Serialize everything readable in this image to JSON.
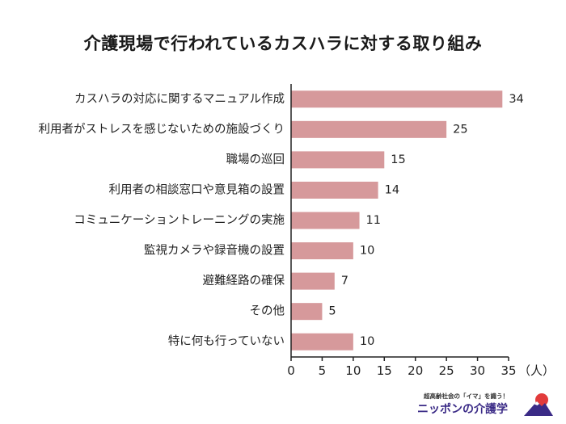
{
  "title": "介護現場で行われているカスハラに対する取り組み",
  "colors": {
    "bar": "#d6999b",
    "axis": "#222222",
    "brand": "#3a2a86",
    "brand_accent": "#e23b3b"
  },
  "chart_data": {
    "type": "bar",
    "orientation": "horizontal",
    "title": "介護現場で行われているカスハラに対する取り組み",
    "categories": [
      "カスハラの対応に関するマニュアル作成",
      "利用者がストレスを感じないための施設づくり",
      "職場の巡回",
      "利用者の相談窓口や意見箱の設置",
      "コミュニケーショントレーニングの実施",
      "監視カメラや録音機の設置",
      "避難経路の確保",
      "その他",
      "特に何も行っていない"
    ],
    "values": [
      34,
      25,
      15,
      14,
      11,
      10,
      7,
      5,
      10
    ],
    "xlim": [
      0,
      35
    ],
    "xticks": [
      0,
      5,
      10,
      15,
      20,
      25,
      30,
      35
    ],
    "xticklabels": [
      "0",
      "5",
      "10",
      "15",
      "20",
      "25",
      "30",
      "35"
    ],
    "unit": "（人）",
    "grid": false,
    "legend": "none"
  },
  "logo": {
    "tagline": "超高齢社会の「イマ」を識う！",
    "brand": "ニッポンの介護学",
    "icon": "mountain-sun-icon"
  }
}
